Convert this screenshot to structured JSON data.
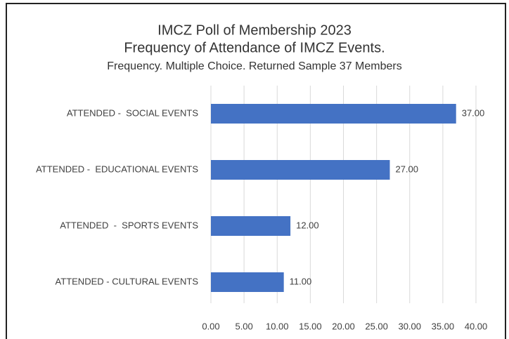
{
  "chart_data": {
    "type": "barh",
    "title": "IMCZ Poll of Membership 2023",
    "subtitle": "Frequency of Attendance of IMCZ Events.",
    "caption": "Frequency. Multiple Choice. Returned Sample 37 Members",
    "categories": [
      "ATTENDED -  SOCIAL EVENTS",
      "ATTENDED -  EDUCATIONAL EVENTS",
      "ATTENDED  -  SPORTS EVENTS",
      "ATTENDED - CULTURAL EVENTS"
    ],
    "values": [
      37,
      27,
      12,
      11
    ],
    "value_labels": [
      "37.00",
      "27.00",
      "12.00",
      "11.00"
    ],
    "color": "#4472c4",
    "xlim": [
      0,
      40
    ],
    "xticks": [
      {
        "value": 0,
        "label": "0.00"
      },
      {
        "value": 5,
        "label": "5.00"
      },
      {
        "value": 10,
        "label": "10.00"
      },
      {
        "value": 15,
        "label": "15.00"
      },
      {
        "value": 20,
        "label": "20.00"
      },
      {
        "value": 25,
        "label": "25.00"
      },
      {
        "value": 30,
        "label": "30.00"
      },
      {
        "value": 35,
        "label": "35.00"
      },
      {
        "value": 40,
        "label": "40.00"
      }
    ],
    "grid": true
  }
}
